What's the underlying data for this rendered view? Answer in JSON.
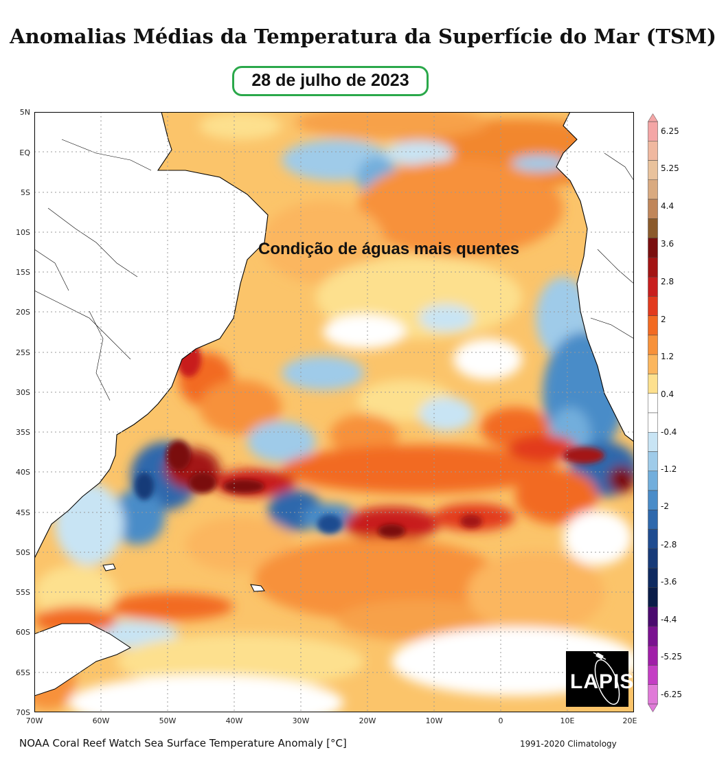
{
  "title": "Anomalias Médias da Temperatura da Superfície do Mar (TSM)",
  "date_label": "28 de julho de 2023",
  "annotation": "Condição de águas mais quentes",
  "logo_text": "LAPIS",
  "footer": {
    "product": "NOAA Coral Reef Watch Sea Surface Temperature Anomaly [°C]",
    "climatology": "1991-2020 Climatology"
  },
  "map": {
    "lat_labels": [
      "5N",
      "EQ",
      "5S",
      "10S",
      "15S",
      "20S",
      "25S",
      "30S",
      "35S",
      "40S",
      "45S",
      "50S",
      "55S",
      "60S",
      "65S",
      "70S"
    ],
    "lon_labels": [
      "70W",
      "60W",
      "50W",
      "40W",
      "30W",
      "20W",
      "10W",
      "0",
      "10E",
      "20E"
    ],
    "lat_range": [
      -70,
      5
    ],
    "lon_range": [
      -70,
      20
    ],
    "gridlines": true,
    "colors": {
      "land": "#ffffff",
      "coast": "#000000",
      "neutral_water": "#ffffff"
    }
  },
  "colorbar": {
    "labels": [
      "6.25",
      "5.25",
      "4.4",
      "3.6",
      "2.8",
      "2",
      "1.2",
      "0.4",
      "-0.4",
      "-1.2",
      "-2",
      "-2.8",
      "-3.6",
      "-4.4",
      "-5.25",
      "-6.25"
    ],
    "colors_top_to_bottom": [
      "#f4a6a6",
      "#f0b8a0",
      "#e9c29c",
      "#d9aa80",
      "#c0865a",
      "#8b5a2b",
      "#7a0f0f",
      "#a31414",
      "#c81e1e",
      "#e23a1e",
      "#f26a22",
      "#f7913a",
      "#fbb65e",
      "#fde08e",
      "#ffffff",
      "#ffffff",
      "#c8e4f4",
      "#9fcbe9",
      "#72aedc",
      "#4a8cc8",
      "#2e68ac",
      "#1f4c90",
      "#173a78",
      "#0f2a60",
      "#0a1c48",
      "#4a0a6e",
      "#7a1290",
      "#a01ea8",
      "#c43ec4",
      "#e07ad8"
    ]
  }
}
